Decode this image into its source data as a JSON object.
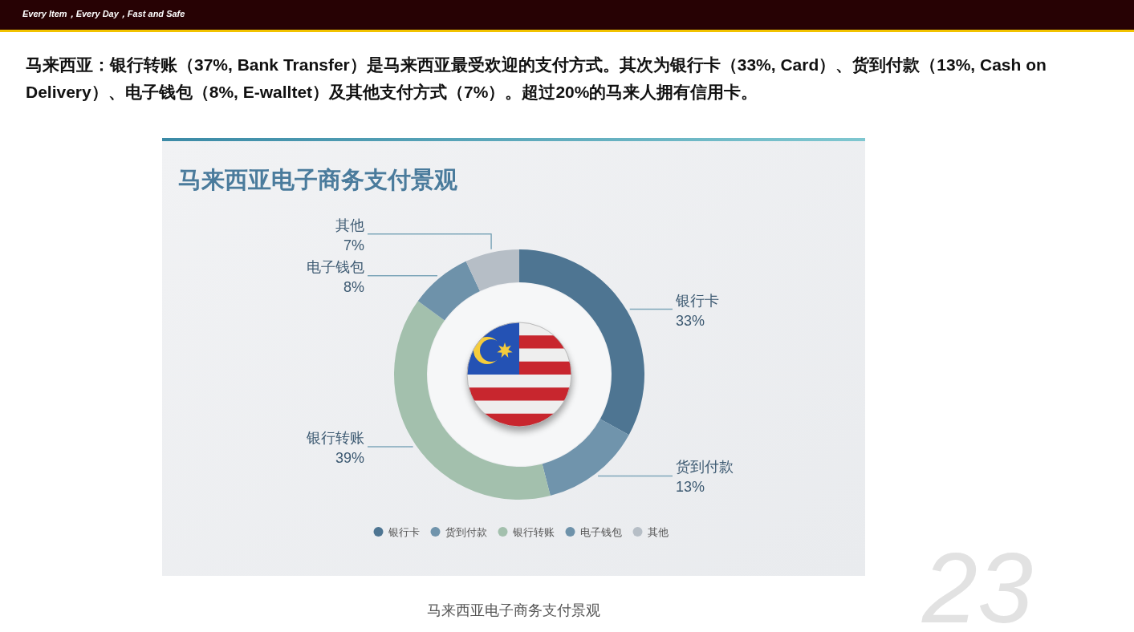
{
  "chart_data": {
    "type": "donut",
    "title": "马来西亚电子商务支付景观",
    "categories": [
      "银行卡",
      "货到付款",
      "银行转账",
      "电子钱包",
      "其他"
    ],
    "values": [
      33,
      13,
      39,
      8,
      7
    ],
    "colors": [
      "#4e7592",
      "#7094ac",
      "#a3c0ad",
      "#6e92aa",
      "#b6bec6"
    ],
    "value_labels": [
      "33%",
      "13%",
      "39%",
      "8%",
      "7%"
    ],
    "legend": "bottom",
    "annotations": [
      "Every Item，Every Day，Fast and Safe",
      "马来西亚：银行转账（37%, Bank Transfer）是马来西亚最受欢迎的支付方式。其次为银行卡（33%, Card）、货到付款（13%, Cash on Delivery）、电子钱包（8%, E-walltet）及其他支付方式（7%）。超过20%的马来人拥有信用卡。",
      "马来西亚电子商务支付景观",
      "23"
    ]
  }
}
